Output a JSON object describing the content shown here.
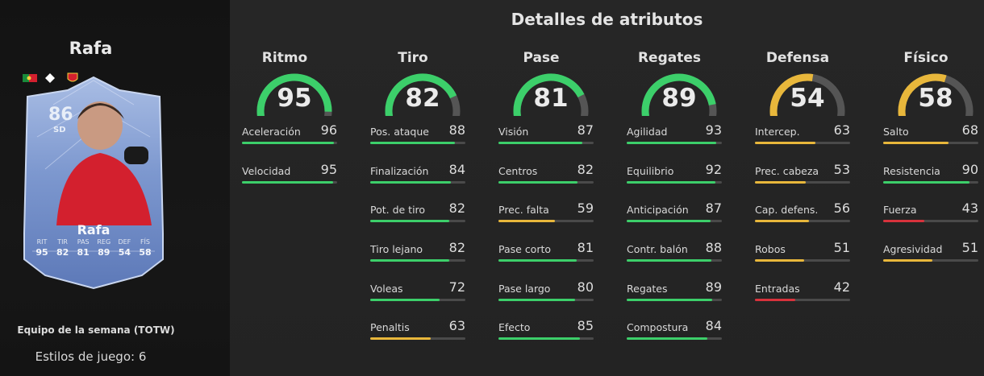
{
  "player": {
    "name": "Rafa",
    "rating": "86",
    "position": "SD",
    "card_stats": [
      {
        "label": "RIT",
        "value": "95"
      },
      {
        "label": "TIR",
        "value": "82"
      },
      {
        "label": "PAS",
        "value": "81"
      },
      {
        "label": "REG",
        "value": "89"
      },
      {
        "label": "DEF",
        "value": "54"
      },
      {
        "label": "FÍS",
        "value": "58"
      }
    ],
    "team_label": "Equipo de la semana (TOTW)",
    "styles_label": "Estilos de juego: 6"
  },
  "details": {
    "title": "Detalles de atributos",
    "categories": [
      {
        "name": "Ritmo",
        "value": "95",
        "color": "#3ccf6a",
        "attributes": [
          {
            "name": "Aceleración",
            "value": "96"
          },
          {
            "name": "Velocidad",
            "value": "95"
          }
        ]
      },
      {
        "name": "Tiro",
        "value": "82",
        "color": "#3ccf6a",
        "attributes": [
          {
            "name": "Pos. ataque",
            "value": "88"
          },
          {
            "name": "Finalización",
            "value": "84"
          },
          {
            "name": "Pot. de tiro",
            "value": "82"
          },
          {
            "name": "Tiro lejano",
            "value": "82"
          },
          {
            "name": "Voleas",
            "value": "72"
          },
          {
            "name": "Penaltis",
            "value": "63"
          }
        ]
      },
      {
        "name": "Pase",
        "value": "81",
        "color": "#3ccf6a",
        "attributes": [
          {
            "name": "Visión",
            "value": "87"
          },
          {
            "name": "Centros",
            "value": "82"
          },
          {
            "name": "Prec. falta",
            "value": "59"
          },
          {
            "name": "Pase corto",
            "value": "81"
          },
          {
            "name": "Pase largo",
            "value": "80"
          },
          {
            "name": "Efecto",
            "value": "85"
          }
        ]
      },
      {
        "name": "Regates",
        "value": "89",
        "color": "#3ccf6a",
        "attributes": [
          {
            "name": "Agilidad",
            "value": "93"
          },
          {
            "name": "Equilibrio",
            "value": "92"
          },
          {
            "name": "Anticipación",
            "value": "87"
          },
          {
            "name": "Contr. balón",
            "value": "88"
          },
          {
            "name": "Regates",
            "value": "89"
          },
          {
            "name": "Compostura",
            "value": "84"
          }
        ]
      },
      {
        "name": "Defensa",
        "value": "54",
        "color": "#e8b73b",
        "attributes": [
          {
            "name": "Intercep.",
            "value": "63"
          },
          {
            "name": "Prec. cabeza",
            "value": "53"
          },
          {
            "name": "Cap. defens.",
            "value": "56"
          },
          {
            "name": "Robos",
            "value": "51"
          },
          {
            "name": "Entradas",
            "value": "42"
          }
        ]
      },
      {
        "name": "Físico",
        "value": "58",
        "color": "#e8b73b",
        "attributes": [
          {
            "name": "Salto",
            "value": "68"
          },
          {
            "name": "Resistencia",
            "value": "90"
          },
          {
            "name": "Fuerza",
            "value": "43"
          },
          {
            "name": "Agresividad",
            "value": "51"
          }
        ]
      }
    ]
  },
  "colors": {
    "high": "#3ccf6a",
    "mid": "#e8b73b",
    "low": "#d8323c",
    "track": "#4a4a4a",
    "card_blue": "#6f8fc9"
  }
}
